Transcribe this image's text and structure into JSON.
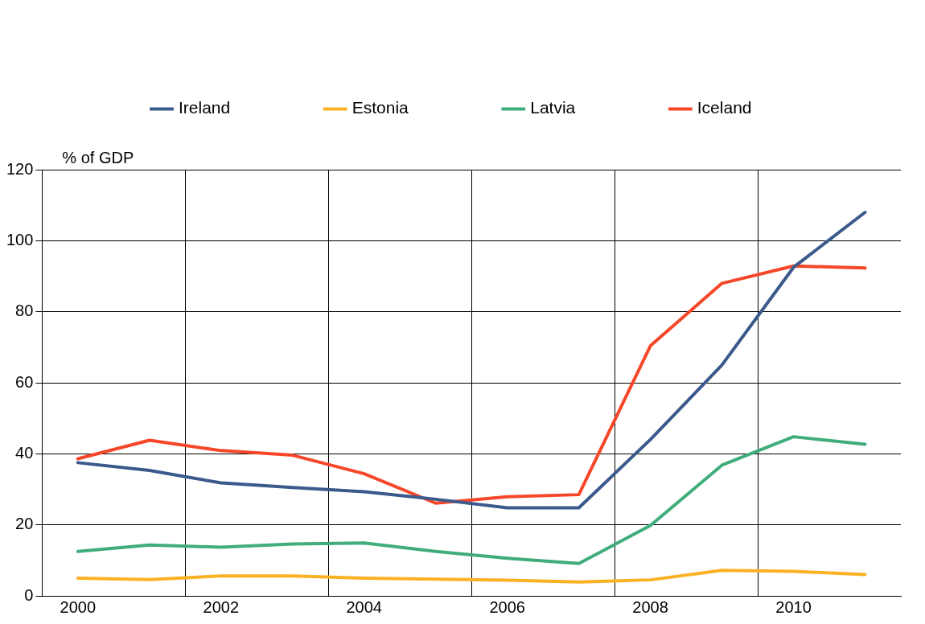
{
  "chart_data": {
    "type": "line",
    "ylabel": "% of GDP",
    "categories": [
      "2000",
      null,
      "2002",
      null,
      "2004",
      null,
      "2006",
      null,
      "2008",
      null,
      "2010",
      null
    ],
    "ylim": [
      0,
      120
    ],
    "yticks": [
      0,
      20,
      40,
      60,
      80,
      100,
      120
    ],
    "grid": true,
    "legend": "top",
    "marker": "none",
    "line_style": "solid",
    "series": [
      {
        "name": "Ireland",
        "color": "#3a5a8c",
        "values": [
          37.5,
          35.3,
          31.8,
          30.5,
          29.3,
          27.2,
          24.8,
          24.8,
          44,
          65,
          92.5,
          108
        ]
      },
      {
        "name": "Estonia",
        "color": "#fbb124",
        "values": [
          5,
          4.6,
          5.6,
          5.6,
          5,
          4.7,
          4.4,
          3.9,
          4.5,
          7.2,
          6.9,
          6
        ]
      },
      {
        "name": "Latvia",
        "color": "#40ad7a",
        "values": [
          12.5,
          14.3,
          13.7,
          14.6,
          14.9,
          12.5,
          10.6,
          9.1,
          19.8,
          36.8,
          44.8,
          42.7
        ]
      },
      {
        "name": "Iceland",
        "color": "#f6472a",
        "values": [
          38.6,
          43.8,
          40.9,
          39.6,
          34.4,
          26.1,
          27.9,
          28.5,
          70.4,
          88,
          92.9,
          92.3
        ]
      }
    ]
  }
}
